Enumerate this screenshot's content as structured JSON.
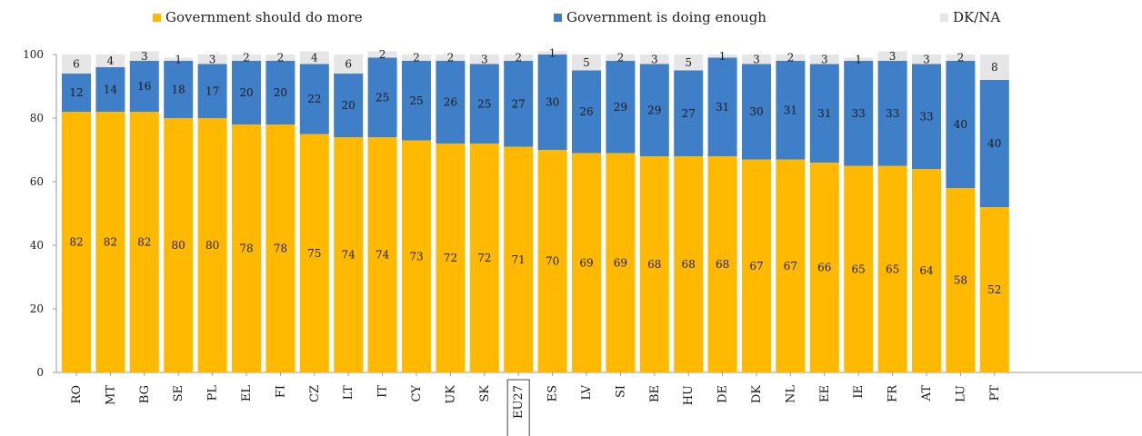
{
  "legend": {
    "items": [
      {
        "label": "Government should do more",
        "color": "#FFB900"
      },
      {
        "label": "Government is doing enough",
        "color": "#3F7FC8"
      },
      {
        "label": "DK/NA",
        "color": "#E6E6E6"
      }
    ]
  },
  "chart_data": {
    "type": "bar",
    "stacked": true,
    "categories": [
      "RO",
      "MT",
      "BG",
      "SE",
      "PL",
      "EL",
      "FI",
      "CZ",
      "LT",
      "IT",
      "CY",
      "UK",
      "SK",
      "EU27",
      "ES",
      "LV",
      "SI",
      "BE",
      "HU",
      "DE",
      "DK",
      "NL",
      "EE",
      "IE",
      "FR",
      "AT",
      "LU",
      "PT"
    ],
    "category_labels": [
      "RO",
      "MT",
      "BG",
      "SE",
      "PL",
      "EL",
      "FI",
      "CZ",
      "LT",
      "IT",
      "CY",
      "UK",
      "SK",
      "EU27",
      "ES",
      "LV",
      "SI",
      "BE",
      "HU",
      "DE",
      "DK",
      "NL",
      "EE",
      "IE",
      "FR",
      "AT",
      "LU",
      "PT"
    ],
    "highlighted_category": "EU27",
    "series": [
      {
        "name": "Government should do more",
        "color": "#FFB900",
        "values": [
          82,
          82,
          82,
          80,
          80,
          78,
          78,
          75,
          74,
          74,
          73,
          72,
          72,
          71,
          70,
          69,
          69,
          68,
          68,
          68,
          67,
          67,
          66,
          65,
          65,
          64,
          58,
          52
        ]
      },
      {
        "name": "Government is doing enough",
        "color": "#3F7FC8",
        "values": [
          12,
          14,
          16,
          18,
          17,
          20,
          20,
          22,
          20,
          25,
          25,
          26,
          25,
          27,
          30,
          26,
          29,
          29,
          27,
          31,
          30,
          31,
          31,
          33,
          33,
          33,
          40,
          40
        ]
      },
      {
        "name": "DK/NA",
        "color": "#E6E6E6",
        "values": [
          6,
          4,
          3,
          1,
          3,
          2,
          2,
          4,
          6,
          2,
          2,
          2,
          3,
          2,
          1,
          5,
          2,
          3,
          5,
          1,
          3,
          2,
          3,
          1,
          3,
          3,
          2,
          8
        ]
      }
    ],
    "ylim": [
      0,
      100
    ],
    "yticks": [
      "0",
      "20",
      "40",
      "60",
      "80",
      "100"
    ],
    "grid": false,
    "legend_position": "top"
  }
}
